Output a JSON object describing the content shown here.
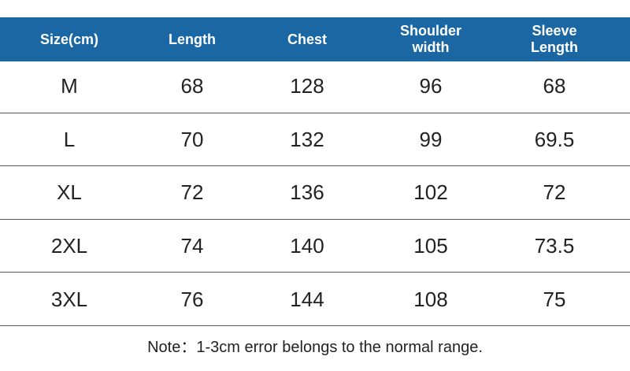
{
  "table": {
    "headers": [
      "Size(cm)",
      "Length",
      "Chest",
      "Shoulder width",
      "Sleeve Length"
    ],
    "rows": [
      [
        "M",
        68,
        128,
        96,
        68
      ],
      [
        "L",
        70,
        132,
        99,
        69.5
      ],
      [
        "XL",
        72,
        136,
        102,
        72
      ],
      [
        "2XL",
        74,
        140,
        105,
        73.5
      ],
      [
        "3XL",
        76,
        144,
        108,
        75
      ]
    ]
  },
  "note": "Note：1-3cm error belongs to the normal range."
}
